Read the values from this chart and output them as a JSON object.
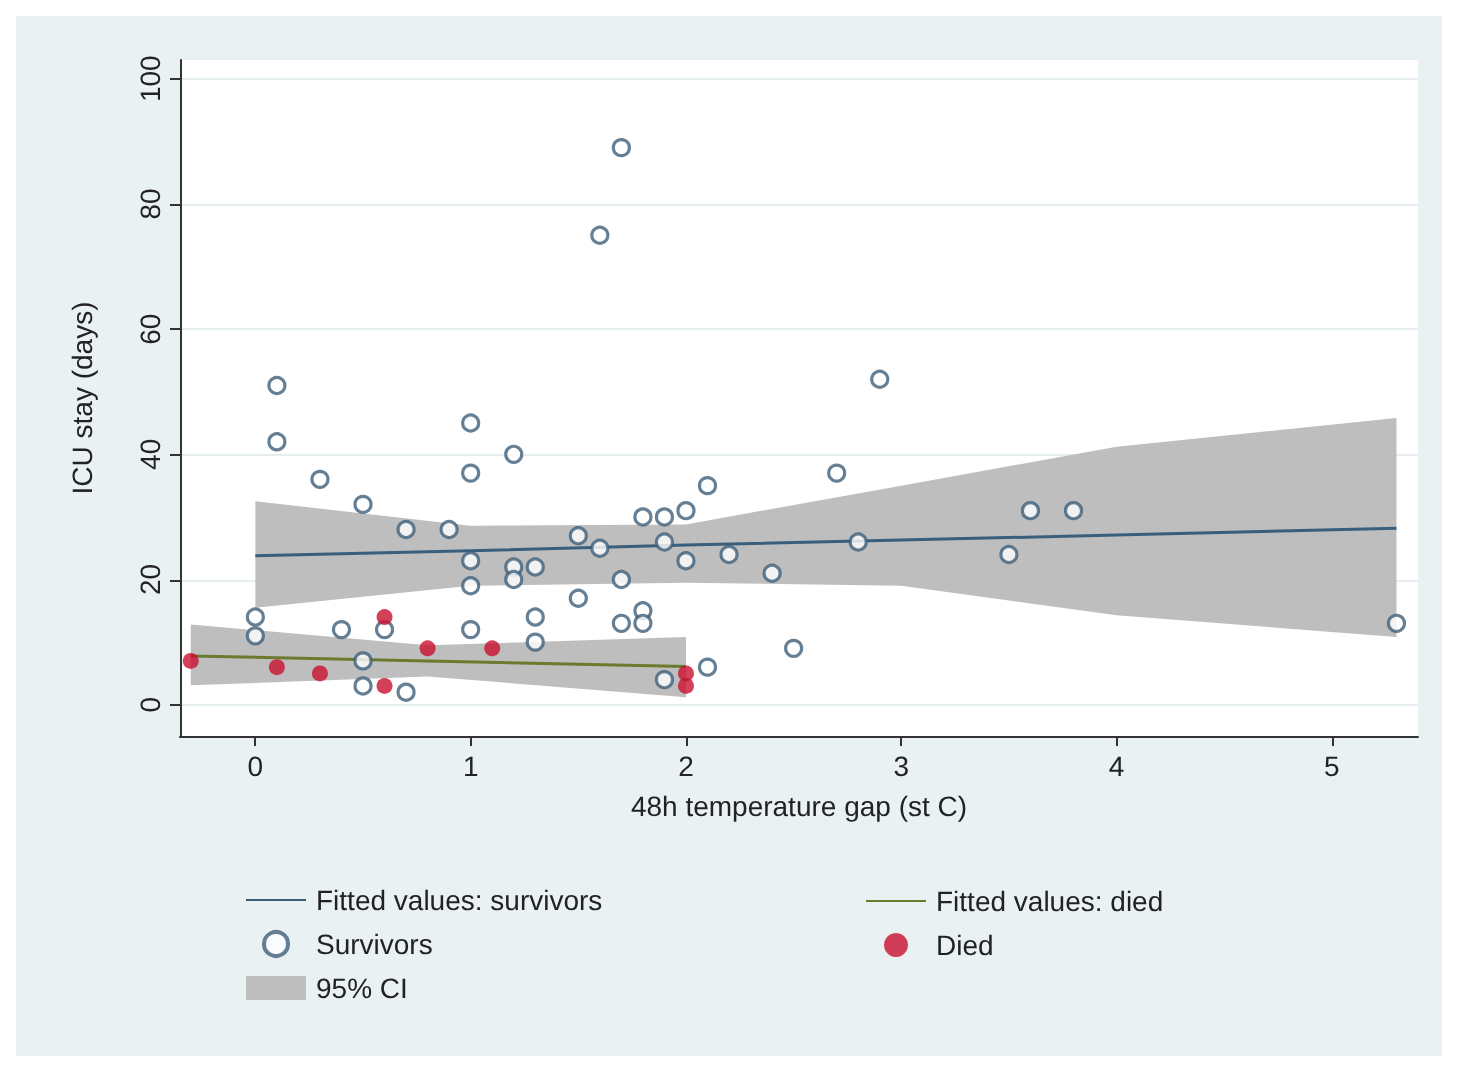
{
  "chart_data": {
    "type": "scatter",
    "xlabel": "48h temperature gap (st C)",
    "ylabel": "ICU stay (days)",
    "xlim": [
      -0.35,
      5.4
    ],
    "ylim": [
      -5,
      103
    ],
    "xticks": [
      0,
      1,
      2,
      3,
      4,
      5
    ],
    "yticks": [
      0,
      20,
      40,
      60,
      80,
      100
    ],
    "grid": "y",
    "legend": "bottom",
    "marker": "circle",
    "series": [
      {
        "name": "Fitted values: survivors",
        "type": "line",
        "marker": "none",
        "color": "#3a5f7d",
        "x": [
          0,
          1,
          2,
          3,
          4,
          5.3
        ],
        "values": [
          23.8,
          24.6,
          25.5,
          26.3,
          27.1,
          28.2
        ],
        "lower": [
          15.5,
          19,
          19.5,
          19,
          14.3,
          10.8
        ],
        "upper": [
          32.5,
          28.6,
          28.8,
          35,
          41.2,
          45.8
        ]
      },
      {
        "name": "Fitted values: died",
        "type": "line",
        "marker": "none",
        "color": "#6b7a2e",
        "x": [
          -0.3,
          0.8,
          2
        ],
        "values": [
          7.8,
          7,
          6.1
        ],
        "lower": [
          3.1,
          4.5,
          1.2
        ],
        "upper": [
          12.8,
          9.5,
          10.8
        ]
      },
      {
        "name": "Survivors",
        "color": "#3f5f7a",
        "x": [
          0,
          0,
          0.1,
          0.1,
          0.3,
          0.5,
          0.7,
          0.9,
          1,
          1,
          1,
          1,
          1,
          1.2,
          1.2,
          1.2,
          1.3,
          1.3,
          1.3,
          0.4,
          0.5,
          0.5,
          0.6,
          0.7,
          1.7,
          1.6,
          2.9,
          2.7,
          2.1,
          2,
          1.8,
          1.9,
          1.5,
          1.6,
          1.9,
          2,
          2.2,
          2.4,
          2.8,
          1.7,
          1.5,
          1.8,
          1.7,
          1.8,
          2.5,
          1.9,
          2.1,
          3.6,
          3.8,
          3.5,
          5.3
        ],
        "values": [
          14,
          11,
          51,
          42,
          36,
          32,
          28,
          28,
          45,
          37,
          23,
          19,
          12,
          40,
          22,
          20,
          22,
          14,
          10,
          12,
          7,
          3,
          12,
          2,
          89,
          75,
          52,
          37,
          35,
          31,
          30,
          30,
          27,
          25,
          26,
          23,
          24,
          21,
          26,
          20,
          17,
          15,
          13,
          13,
          9,
          4,
          6,
          31,
          31,
          24,
          13
        ]
      },
      {
        "name": "Died",
        "color": "#c8102e",
        "x": [
          -0.3,
          0.1,
          0.3,
          0.6,
          0.6,
          0.8,
          1.1,
          2,
          2
        ],
        "values": [
          7,
          6,
          5,
          14,
          3,
          9,
          9,
          5,
          3
        ]
      },
      {
        "name": "95% CI",
        "type": "area",
        "color": "#bebebe"
      }
    ]
  }
}
